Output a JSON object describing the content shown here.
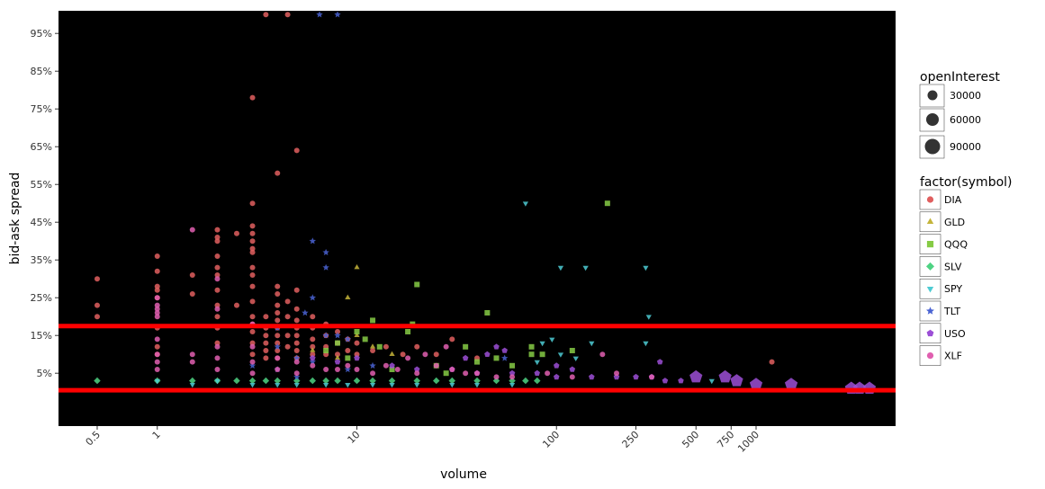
{
  "chart_data": {
    "type": "scatter",
    "xlabel": "volume",
    "ylabel": "bid-ask spread",
    "x_scale": "log10",
    "xlim": [
      0.32,
      5000
    ],
    "ylim": [
      -0.09,
      1.01
    ],
    "x_ticks": [
      {
        "value": 0.5,
        "label": "0.5"
      },
      {
        "value": 1,
        "label": "1"
      },
      {
        "value": 10,
        "label": "10"
      },
      {
        "value": 100,
        "label": "100"
      },
      {
        "value": 250,
        "label": "250"
      },
      {
        "value": 500,
        "label": "500"
      },
      {
        "value": 750,
        "label": "750"
      },
      {
        "value": 1000,
        "label": "1000"
      }
    ],
    "y_ticks": [
      {
        "value": 0.05,
        "label": "5%"
      },
      {
        "value": 0.15,
        "label": "15%"
      },
      {
        "value": 0.25,
        "label": "25%"
      },
      {
        "value": 0.35,
        "label": "35%"
      },
      {
        "value": 0.45,
        "label": "45%"
      },
      {
        "value": 0.55,
        "label": "55%"
      },
      {
        "value": 0.65,
        "label": "65%"
      },
      {
        "value": 0.75,
        "label": "75%"
      },
      {
        "value": 0.85,
        "label": "85%"
      },
      {
        "value": 0.95,
        "label": "95%"
      }
    ],
    "background": "#000000",
    "grid": false,
    "hlines": [
      {
        "y": 0.175,
        "color": "#ff0000"
      },
      {
        "y": 0.005,
        "color": "#ff0000"
      }
    ],
    "legend_position": "right",
    "size_legend": {
      "title": "openInterest",
      "entries": [
        {
          "label": "30000",
          "value": 30000
        },
        {
          "label": "60000",
          "value": 60000
        },
        {
          "label": "90000",
          "value": 90000
        }
      ]
    },
    "color_legend": {
      "title": "factor(symbol)",
      "entries": [
        {
          "label": "DIA",
          "color": "#e05f5f",
          "shape": "circle"
        },
        {
          "label": "GLD",
          "color": "#c4b43a",
          "shape": "triangle-up"
        },
        {
          "label": "QQQ",
          "color": "#86cb45",
          "shape": "square"
        },
        {
          "label": "SLV",
          "color": "#4ed383",
          "shape": "diamond"
        },
        {
          "label": "SPY",
          "color": "#4ecbd3",
          "shape": "triangle-down"
        },
        {
          "label": "TLT",
          "color": "#4a63d3",
          "shape": "star"
        },
        {
          "label": "USO",
          "color": "#9c4fd6",
          "shape": "pentagon"
        },
        {
          "label": "XLF",
          "color": "#e05fb0",
          "shape": "circle"
        }
      ]
    },
    "series": [
      {
        "name": "DIA",
        "shape": "circle",
        "color": "#e05f5f",
        "points": [
          [
            0.5,
            0.3
          ],
          [
            0.5,
            0.23
          ],
          [
            0.5,
            0.2
          ],
          [
            1,
            0.36
          ],
          [
            1,
            0.32
          ],
          [
            1,
            0.28
          ],
          [
            1,
            0.27
          ],
          [
            1,
            0.25
          ],
          [
            1,
            0.17
          ],
          [
            1,
            0.12
          ],
          [
            1,
            0.1
          ],
          [
            1.5,
            0.31
          ],
          [
            1.5,
            0.26
          ],
          [
            2,
            0.43
          ],
          [
            2,
            0.41
          ],
          [
            2,
            0.4
          ],
          [
            2,
            0.36
          ],
          [
            2,
            0.33
          ],
          [
            2,
            0.31
          ],
          [
            2,
            0.27
          ],
          [
            2,
            0.23
          ],
          [
            2,
            0.2
          ],
          [
            2,
            0.17
          ],
          [
            2,
            0.13
          ],
          [
            2.5,
            0.42
          ],
          [
            2.5,
            0.23
          ],
          [
            3,
            0.78
          ],
          [
            3,
            0.5
          ],
          [
            3,
            0.44
          ],
          [
            3,
            0.42
          ],
          [
            3,
            0.4
          ],
          [
            3,
            0.38
          ],
          [
            3,
            0.37
          ],
          [
            3,
            0.33
          ],
          [
            3,
            0.31
          ],
          [
            3,
            0.28
          ],
          [
            3,
            0.24
          ],
          [
            3,
            0.2
          ],
          [
            3,
            0.18
          ],
          [
            3,
            0.16
          ],
          [
            3,
            0.13
          ],
          [
            3,
            0.1
          ],
          [
            3.5,
            1.0
          ],
          [
            3.5,
            0.2
          ],
          [
            3.5,
            0.17
          ],
          [
            3.5,
            0.15
          ],
          [
            3.5,
            0.13
          ],
          [
            3.5,
            0.11
          ],
          [
            3.5,
            0.09
          ],
          [
            4,
            0.58
          ],
          [
            4,
            0.28
          ],
          [
            4,
            0.26
          ],
          [
            4,
            0.23
          ],
          [
            4,
            0.21
          ],
          [
            4,
            0.19
          ],
          [
            4,
            0.17
          ],
          [
            4,
            0.15
          ],
          [
            4,
            0.13
          ],
          [
            4,
            0.11
          ],
          [
            4,
            0.09
          ],
          [
            4.5,
            1.0
          ],
          [
            4.5,
            0.24
          ],
          [
            4.5,
            0.2
          ],
          [
            4.5,
            0.15
          ],
          [
            4.5,
            0.12
          ],
          [
            5,
            0.64
          ],
          [
            5,
            0.27
          ],
          [
            5,
            0.22
          ],
          [
            5,
            0.19
          ],
          [
            5,
            0.17
          ],
          [
            5,
            0.15
          ],
          [
            5,
            0.13
          ],
          [
            5,
            0.11
          ],
          [
            5,
            0.09
          ],
          [
            6,
            0.2
          ],
          [
            6,
            0.17
          ],
          [
            6,
            0.14
          ],
          [
            6,
            0.12
          ],
          [
            6,
            0.1
          ],
          [
            7,
            0.18
          ],
          [
            7,
            0.15
          ],
          [
            7,
            0.12
          ],
          [
            7,
            0.1
          ],
          [
            8,
            0.16
          ],
          [
            8,
            0.13
          ],
          [
            8,
            0.1
          ],
          [
            9,
            0.14
          ],
          [
            9,
            0.11
          ],
          [
            10,
            0.13
          ],
          [
            10,
            0.1
          ],
          [
            12,
            0.11
          ],
          [
            14,
            0.12
          ],
          [
            17,
            0.1
          ],
          [
            20,
            0.12
          ],
          [
            25,
            0.1
          ],
          [
            30,
            0.14
          ],
          [
            40,
            0.09
          ],
          [
            1200,
            0.08
          ]
        ]
      },
      {
        "name": "GLD",
        "shape": "triangle-up",
        "color": "#c4b43a",
        "points": [
          [
            10,
            0.33
          ],
          [
            9,
            0.25
          ],
          [
            10,
            0.15
          ],
          [
            12,
            0.12
          ],
          [
            15,
            0.1
          ],
          [
            8,
            0.09
          ],
          [
            6,
            0.11
          ]
        ]
      },
      {
        "name": "QQQ",
        "shape": "square",
        "color": "#86cb45",
        "points": [
          [
            180,
            0.5
          ],
          [
            20,
            0.285
          ],
          [
            45,
            0.21
          ],
          [
            12,
            0.19
          ],
          [
            19,
            0.18
          ],
          [
            10,
            0.16
          ],
          [
            18,
            0.16
          ],
          [
            11,
            0.14
          ],
          [
            13,
            0.12
          ],
          [
            8,
            0.13
          ],
          [
            75,
            0.12
          ],
          [
            120,
            0.11
          ],
          [
            75,
            0.1
          ],
          [
            85,
            0.1
          ],
          [
            50,
            0.09
          ],
          [
            35,
            0.12
          ],
          [
            40,
            0.08
          ],
          [
            60,
            0.07
          ],
          [
            7,
            0.11
          ],
          [
            9,
            0.09
          ],
          [
            25,
            0.07
          ],
          [
            28,
            0.05
          ],
          [
            15,
            0.06
          ]
        ]
      },
      {
        "name": "SLV",
        "shape": "diamond",
        "color": "#4ed383",
        "points": [
          [
            0.5,
            0.03
          ],
          [
            1,
            0.03
          ],
          [
            1.5,
            0.03
          ],
          [
            2,
            0.03
          ],
          [
            2.5,
            0.03
          ],
          [
            3,
            0.03
          ],
          [
            3.5,
            0.03
          ],
          [
            4,
            0.03
          ],
          [
            5,
            0.03
          ],
          [
            6,
            0.03
          ],
          [
            7,
            0.03
          ],
          [
            8,
            0.03
          ],
          [
            10,
            0.03
          ],
          [
            12,
            0.03
          ],
          [
            15,
            0.03
          ],
          [
            20,
            0.03
          ],
          [
            25,
            0.03
          ],
          [
            30,
            0.03
          ],
          [
            40,
            0.03
          ],
          [
            50,
            0.03
          ],
          [
            60,
            0.03
          ],
          [
            70,
            0.03
          ],
          [
            80,
            0.03
          ]
        ]
      },
      {
        "name": "SPY",
        "shape": "triangle-down",
        "color": "#4ecbd3",
        "points": [
          [
            70,
            0.5
          ],
          [
            105,
            0.33
          ],
          [
            140,
            0.33
          ],
          [
            280,
            0.33
          ],
          [
            290,
            0.2
          ],
          [
            95,
            0.14
          ],
          [
            85,
            0.13
          ],
          [
            150,
            0.13
          ],
          [
            280,
            0.13
          ],
          [
            105,
            0.1
          ],
          [
            125,
            0.09
          ],
          [
            80,
            0.08
          ],
          [
            600,
            0.03
          ],
          [
            1,
            0.03
          ],
          [
            1.5,
            0.02
          ],
          [
            2,
            0.03
          ],
          [
            3,
            0.02
          ],
          [
            4,
            0.02
          ],
          [
            5,
            0.02
          ],
          [
            7,
            0.02
          ],
          [
            9,
            0.02
          ],
          [
            12,
            0.02
          ],
          [
            15,
            0.02
          ],
          [
            20,
            0.02
          ],
          [
            30,
            0.02
          ],
          [
            40,
            0.02
          ],
          [
            60,
            0.02
          ]
        ]
      },
      {
        "name": "TLT",
        "shape": "star",
        "color": "#4a63d3",
        "points": [
          [
            6.5,
            1.0
          ],
          [
            8,
            1.0
          ],
          [
            6,
            0.4
          ],
          [
            7,
            0.37
          ],
          [
            7,
            0.33
          ],
          [
            6,
            0.25
          ],
          [
            5.5,
            0.21
          ],
          [
            4,
            0.17
          ],
          [
            7,
            0.15
          ],
          [
            8,
            0.15
          ],
          [
            9,
            0.14
          ],
          [
            4,
            0.12
          ],
          [
            5,
            0.09
          ],
          [
            3,
            0.07
          ],
          [
            6,
            0.08
          ],
          [
            4,
            0.06
          ],
          [
            5,
            0.04
          ],
          [
            9,
            0.06
          ],
          [
            12,
            0.07
          ],
          [
            55,
            0.09
          ]
        ]
      },
      {
        "name": "USO",
        "shape": "pentagon",
        "color": "#9c4fd6",
        "points": [
          [
            3000,
            0.01
          ],
          [
            3300,
            0.01
          ],
          [
            3700,
            0.01
          ],
          [
            1500,
            0.02
          ],
          [
            1000,
            0.02
          ],
          [
            800,
            0.03
          ],
          [
            700,
            0.04
          ],
          [
            500,
            0.04
          ],
          [
            420,
            0.03
          ],
          [
            350,
            0.03
          ],
          [
            300,
            0.04
          ],
          [
            250,
            0.04
          ],
          [
            200,
            0.04
          ],
          [
            150,
            0.04
          ],
          [
            100,
            0.04
          ],
          [
            80,
            0.05
          ],
          [
            60,
            0.05
          ],
          [
            40,
            0.05
          ],
          [
            30,
            0.06
          ],
          [
            20,
            0.06
          ],
          [
            15,
            0.07
          ],
          [
            50,
            0.12
          ],
          [
            55,
            0.11
          ],
          [
            45,
            0.1
          ],
          [
            35,
            0.09
          ],
          [
            330,
            0.08
          ],
          [
            100,
            0.07
          ],
          [
            120,
            0.06
          ],
          [
            10,
            0.09
          ],
          [
            8,
            0.08
          ],
          [
            6,
            0.09
          ]
        ]
      },
      {
        "name": "XLF",
        "shape": "circle",
        "color": "#e05fb0",
        "points": [
          [
            1,
            0.25
          ],
          [
            1,
            0.23
          ],
          [
            1,
            0.22
          ],
          [
            1,
            0.21
          ],
          [
            1,
            0.2
          ],
          [
            1,
            0.14
          ],
          [
            1,
            0.1
          ],
          [
            1,
            0.08
          ],
          [
            1,
            0.06
          ],
          [
            1.5,
            0.43
          ],
          [
            1.5,
            0.1
          ],
          [
            1.5,
            0.08
          ],
          [
            2,
            0.3
          ],
          [
            2,
            0.22
          ],
          [
            2,
            0.12
          ],
          [
            2,
            0.09
          ],
          [
            2,
            0.06
          ],
          [
            3,
            0.18
          ],
          [
            3,
            0.12
          ],
          [
            3,
            0.08
          ],
          [
            3,
            0.05
          ],
          [
            4,
            0.09
          ],
          [
            4,
            0.06
          ],
          [
            5,
            0.08
          ],
          [
            5,
            0.05
          ],
          [
            6,
            0.07
          ],
          [
            7,
            0.06
          ],
          [
            8,
            0.06
          ],
          [
            9,
            0.07
          ],
          [
            10,
            0.06
          ],
          [
            12,
            0.05
          ],
          [
            14,
            0.07
          ],
          [
            16,
            0.06
          ],
          [
            18,
            0.09
          ],
          [
            20,
            0.05
          ],
          [
            22,
            0.1
          ],
          [
            25,
            0.07
          ],
          [
            28,
            0.12
          ],
          [
            30,
            0.06
          ],
          [
            35,
            0.05
          ],
          [
            40,
            0.05
          ],
          [
            50,
            0.04
          ],
          [
            60,
            0.04
          ],
          [
            90,
            0.05
          ],
          [
            120,
            0.04
          ],
          [
            170,
            0.1
          ],
          [
            200,
            0.05
          ],
          [
            300,
            0.04
          ]
        ]
      }
    ]
  }
}
